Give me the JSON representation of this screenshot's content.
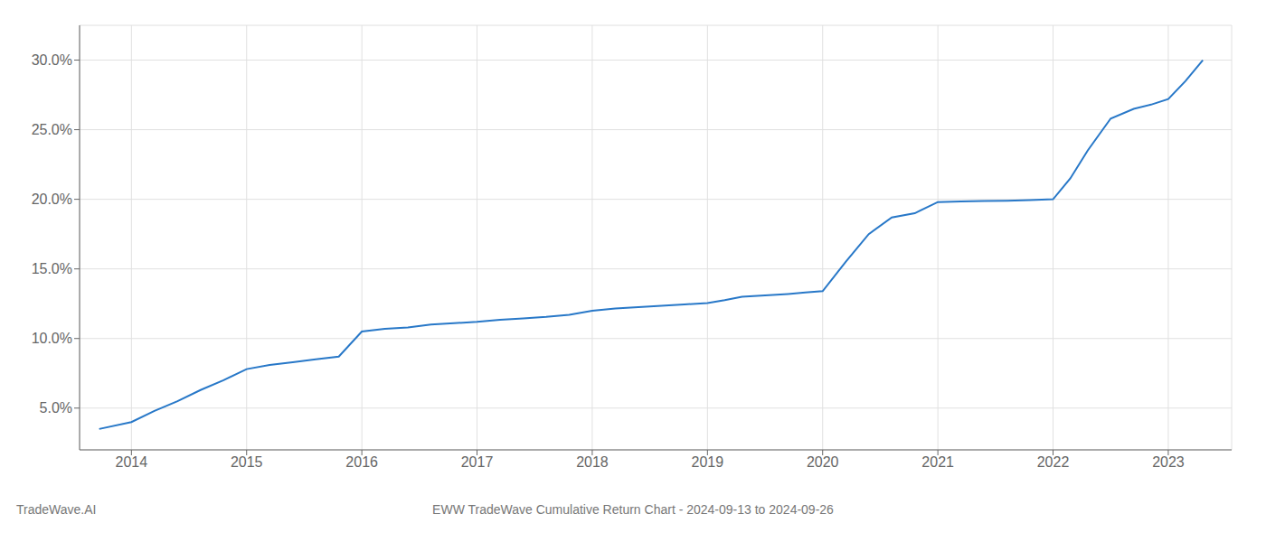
{
  "chart_data": {
    "type": "line",
    "title": "EWW TradeWave Cumulative Return Chart - 2024-09-13 to 2024-09-26",
    "annotations": [
      "TradeWave.AI"
    ],
    "x": [
      2013.72,
      2014.0,
      2014.2,
      2014.4,
      2014.6,
      2014.8,
      2015.0,
      2015.2,
      2015.4,
      2015.6,
      2015.8,
      2016.0,
      2016.2,
      2016.4,
      2016.6,
      2016.8,
      2017.0,
      2017.2,
      2017.4,
      2017.6,
      2017.8,
      2018.0,
      2018.2,
      2018.4,
      2018.6,
      2018.8,
      2019.0,
      2019.15,
      2019.3,
      2019.5,
      2019.7,
      2019.85,
      2020.0,
      2020.2,
      2020.4,
      2020.6,
      2020.8,
      2021.0,
      2021.2,
      2021.4,
      2021.6,
      2021.8,
      2022.0,
      2022.15,
      2022.3,
      2022.5,
      2022.7,
      2022.85,
      2023.0,
      2023.15,
      2023.3
    ],
    "values": [
      3.5,
      4.0,
      4.8,
      5.5,
      6.3,
      7.0,
      7.8,
      8.1,
      8.3,
      8.5,
      8.7,
      10.5,
      10.7,
      10.8,
      11.0,
      11.1,
      11.2,
      11.35,
      11.45,
      11.55,
      11.7,
      12.0,
      12.15,
      12.25,
      12.35,
      12.45,
      12.55,
      12.75,
      13.0,
      13.1,
      13.2,
      13.3,
      13.4,
      15.5,
      17.5,
      18.7,
      19.0,
      19.8,
      19.85,
      19.88,
      19.9,
      19.95,
      20.0,
      21.5,
      23.5,
      25.8,
      26.5,
      26.8,
      27.2,
      28.5,
      30.0
    ],
    "color": "#2878c8",
    "xlim": [
      2013.55,
      2023.55
    ],
    "ylim": [
      2.0,
      32.5
    ],
    "xticks": [
      2014,
      2015,
      2016,
      2017,
      2018,
      2019,
      2020,
      2021,
      2022,
      2023
    ],
    "yticks": [
      {
        "value": 5.0,
        "label": "5.0%"
      },
      {
        "value": 10.0,
        "label": "10.0%"
      },
      {
        "value": 15.0,
        "label": "15.0%"
      },
      {
        "value": 20.0,
        "label": "20.0%"
      },
      {
        "value": 25.0,
        "label": "25.0%"
      },
      {
        "value": 30.0,
        "label": "30.0%"
      }
    ],
    "grid": true
  }
}
